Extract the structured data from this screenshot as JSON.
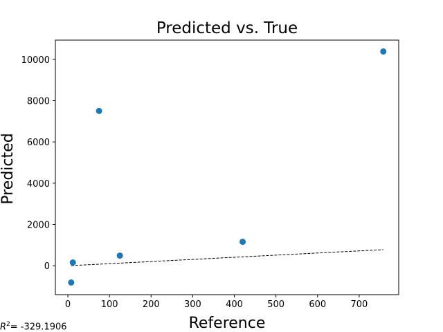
{
  "chart_data": {
    "type": "scatter",
    "title": "Predicted vs. True",
    "xlabel": "Reference",
    "ylabel": "Predicted",
    "xlim": [
      -30,
      795
    ],
    "ylim": [
      -1400,
      10930
    ],
    "xticks": [
      0,
      100,
      200,
      300,
      400,
      500,
      600,
      700
    ],
    "yticks": [
      0,
      2000,
      4000,
      6000,
      8000,
      10000
    ],
    "x_tick_labels": [
      "0",
      "100",
      "200",
      "300",
      "400",
      "500",
      "600",
      "700"
    ],
    "y_tick_labels": [
      "0",
      "2000",
      "4000",
      "6000",
      "8000",
      "10000"
    ],
    "points": [
      {
        "x": 758,
        "y": 10380
      },
      {
        "x": 75,
        "y": 7500
      },
      {
        "x": 420,
        "y": 1160
      },
      {
        "x": 125,
        "y": 490
      },
      {
        "x": 12,
        "y": 160
      },
      {
        "x": 8,
        "y": -810
      }
    ],
    "fit_line": {
      "x": [
        8,
        758
      ],
      "y": [
        6,
        780
      ]
    },
    "point_color": "#1f77b4",
    "line_color": "#000000",
    "line_style": "dashed",
    "grid": false,
    "legend": "none"
  },
  "annotation": {
    "r2_symbol": "R",
    "r2_exponent": "2",
    "r2_value": "= -329.1906"
  }
}
